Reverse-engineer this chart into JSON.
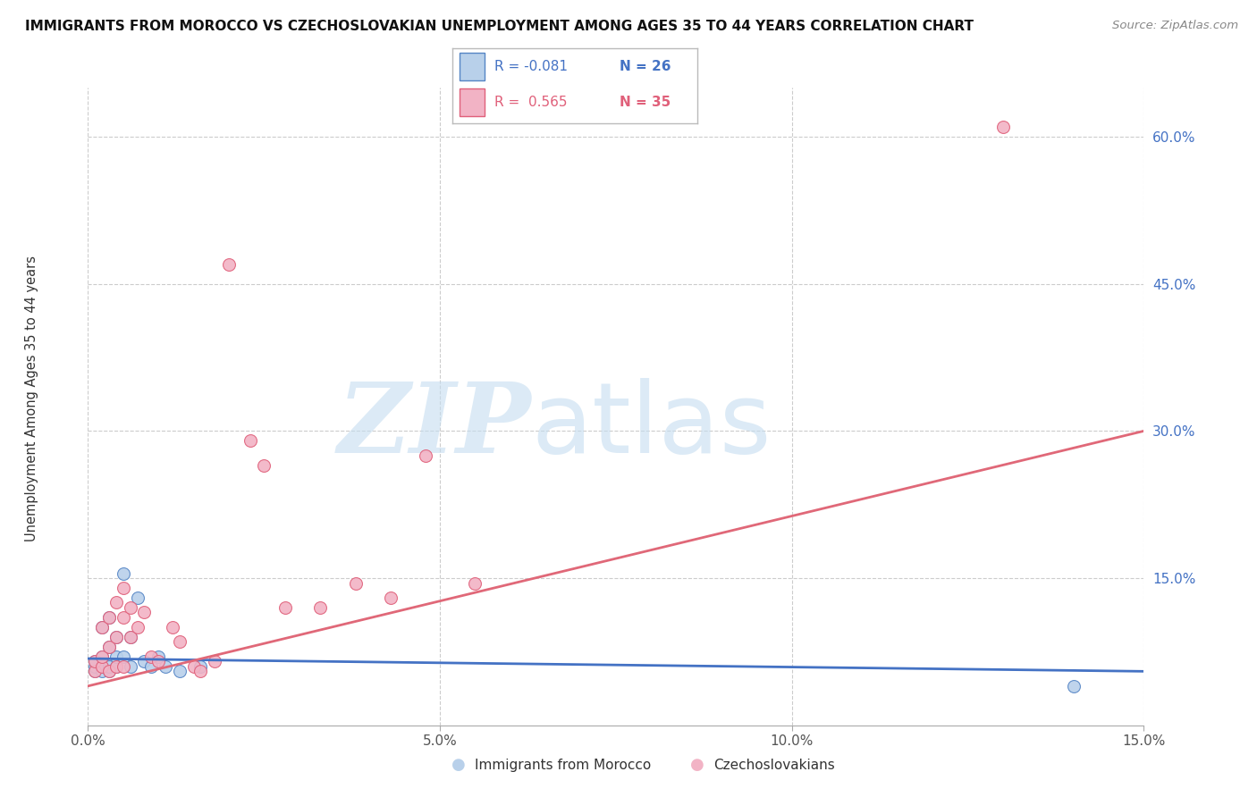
{
  "title": "IMMIGRANTS FROM MOROCCO VS CZECHOSLOVAKIAN UNEMPLOYMENT AMONG AGES 35 TO 44 YEARS CORRELATION CHART",
  "source": "Source: ZipAtlas.com",
  "ylabel": "Unemployment Among Ages 35 to 44 years",
  "watermark_zip": "ZIP",
  "watermark_atlas": "atlas",
  "legend_blue_r": "R = -0.081",
  "legend_blue_n": "N = 26",
  "legend_pink_r": "R =  0.565",
  "legend_pink_n": "N = 35",
  "legend_label_blue": "Immigrants from Morocco",
  "legend_label_pink": "Czechoslovakians",
  "xlim": [
    0.0,
    0.15
  ],
  "ylim": [
    0.0,
    0.65
  ],
  "yticks_right": [
    0.0,
    0.15,
    0.3,
    0.45,
    0.6
  ],
  "ytick_labels_right": [
    "",
    "15.0%",
    "30.0%",
    "45.0%",
    "60.0%"
  ],
  "xtick_positions": [
    0.0,
    0.05,
    0.1,
    0.15
  ],
  "xtick_labels": [
    "0.0%",
    "5.0%",
    "10.0%",
    "15.0%"
  ],
  "blue_fill": "#b8d0ea",
  "blue_edge": "#5585c5",
  "pink_fill": "#f2b3c5",
  "pink_edge": "#e0607a",
  "blue_line_color": "#4472c4",
  "pink_line_color": "#e06878",
  "background_color": "#ffffff",
  "grid_color": "#cccccc",
  "blue_dots_x": [
    0.001,
    0.001,
    0.001,
    0.002,
    0.002,
    0.002,
    0.002,
    0.003,
    0.003,
    0.003,
    0.003,
    0.004,
    0.004,
    0.004,
    0.005,
    0.005,
    0.006,
    0.006,
    0.007,
    0.008,
    0.009,
    0.01,
    0.011,
    0.013,
    0.016,
    0.14
  ],
  "blue_dots_y": [
    0.055,
    0.06,
    0.065,
    0.055,
    0.06,
    0.07,
    0.1,
    0.055,
    0.06,
    0.08,
    0.11,
    0.06,
    0.07,
    0.09,
    0.07,
    0.155,
    0.06,
    0.09,
    0.13,
    0.065,
    0.06,
    0.07,
    0.06,
    0.055,
    0.06,
    0.04
  ],
  "pink_dots_x": [
    0.001,
    0.001,
    0.002,
    0.002,
    0.002,
    0.003,
    0.003,
    0.003,
    0.004,
    0.004,
    0.004,
    0.005,
    0.005,
    0.005,
    0.006,
    0.006,
    0.007,
    0.008,
    0.009,
    0.01,
    0.012,
    0.013,
    0.015,
    0.016,
    0.018,
    0.02,
    0.023,
    0.025,
    0.028,
    0.033,
    0.038,
    0.043,
    0.048,
    0.055,
    0.13
  ],
  "pink_dots_y": [
    0.055,
    0.065,
    0.06,
    0.07,
    0.1,
    0.055,
    0.08,
    0.11,
    0.06,
    0.09,
    0.125,
    0.06,
    0.11,
    0.14,
    0.09,
    0.12,
    0.1,
    0.115,
    0.07,
    0.065,
    0.1,
    0.085,
    0.06,
    0.055,
    0.065,
    0.47,
    0.29,
    0.265,
    0.12,
    0.12,
    0.145,
    0.13,
    0.275,
    0.145,
    0.61
  ],
  "blue_line_x": [
    0.0,
    0.15
  ],
  "blue_line_y": [
    0.068,
    0.055
  ],
  "pink_line_x": [
    0.0,
    0.15
  ],
  "pink_line_y": [
    0.04,
    0.3
  ],
  "dot_size": 100
}
